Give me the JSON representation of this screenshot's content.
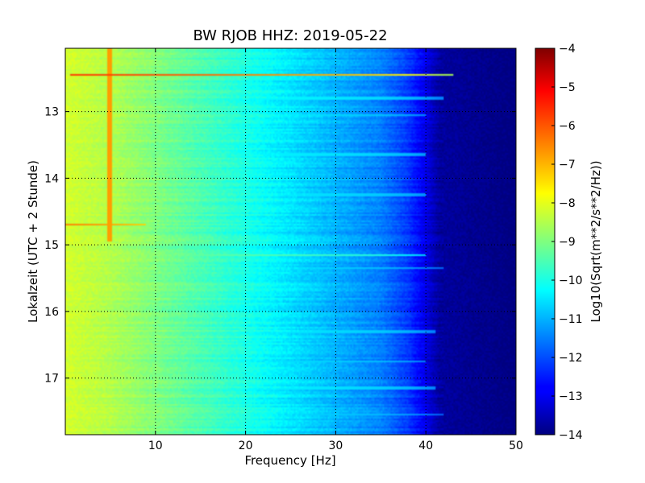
{
  "chart_data": {
    "type": "heatmap",
    "title": "BW RJOB HHZ: 2019-05-22",
    "xlabel": "Frequency [Hz]",
    "ylabel": "Lokalzeit (UTC + 2 Stunde)",
    "colorbar_label": "Log10(Sqrt(m**2/s**2/Hz))",
    "xlim": [
      0,
      50
    ],
    "ylim": [
      17.85,
      12.05
    ],
    "y_inverted": true,
    "clim": [
      -14,
      -4
    ],
    "colormap": "jet",
    "grid": true,
    "x_ticks": [
      {
        "value": 10,
        "label": "10"
      },
      {
        "value": 20,
        "label": "20"
      },
      {
        "value": 30,
        "label": "30"
      },
      {
        "value": 40,
        "label": "40"
      },
      {
        "value": 50,
        "label": "50"
      }
    ],
    "y_ticks": [
      {
        "value": 13,
        "label": "13"
      },
      {
        "value": 14,
        "label": "14"
      },
      {
        "value": 15,
        "label": "15"
      },
      {
        "value": 16,
        "label": "16"
      },
      {
        "value": 17,
        "label": "17"
      }
    ],
    "cbar_ticks": [
      {
        "value": -4,
        "label": "−4"
      },
      {
        "value": -5,
        "label": "−5"
      },
      {
        "value": -6,
        "label": "−6"
      },
      {
        "value": -7,
        "label": "−7"
      },
      {
        "value": -8,
        "label": "−8"
      },
      {
        "value": -9,
        "label": "−9"
      },
      {
        "value": -10,
        "label": "−10"
      },
      {
        "value": -11,
        "label": "−11"
      },
      {
        "value": -12,
        "label": "−12"
      },
      {
        "value": -13,
        "label": "−13"
      },
      {
        "value": -14,
        "label": "−14"
      }
    ],
    "base_spectrum": [
      {
        "freq": 0.5,
        "value": -8.2
      },
      {
        "freq": 5,
        "value": -8.5
      },
      {
        "freq": 10,
        "value": -9.0
      },
      {
        "freq": 15,
        "value": -9.5
      },
      {
        "freq": 20,
        "value": -10.0
      },
      {
        "freq": 25,
        "value": -10.5
      },
      {
        "freq": 30,
        "value": -11.0
      },
      {
        "freq": 35,
        "value": -11.5
      },
      {
        "freq": 38,
        "value": -12.2
      },
      {
        "freq": 40,
        "value": -13.0
      },
      {
        "freq": 41.5,
        "value": -13.7
      },
      {
        "freq": 50,
        "value": -14.0
      }
    ],
    "features": [
      {
        "kind": "horizontal_line",
        "time": 12.45,
        "freq_from": 0.5,
        "freq_to": 43,
        "value": -5.8
      },
      {
        "kind": "horizontal_line",
        "time": 14.7,
        "freq_from": 0,
        "freq_to": 9,
        "value": -6.5
      },
      {
        "kind": "vertical_line",
        "freq": 4.9,
        "time_from": 12.05,
        "time_to": 14.95,
        "value": -6.8
      },
      {
        "kind": "horizontal_line",
        "time": 15.15,
        "freq_from": 0,
        "freq_to": 40,
        "value": -9.3
      },
      {
        "kind": "horizontal_line",
        "time": 12.8,
        "freq_from": 5,
        "freq_to": 42,
        "value": -10.3
      },
      {
        "kind": "horizontal_line",
        "time": 13.05,
        "freq_from": 10,
        "freq_to": 40,
        "value": -10.5
      },
      {
        "kind": "horizontal_line",
        "time": 13.65,
        "freq_from": 10,
        "freq_to": 40,
        "value": -10.4
      },
      {
        "kind": "horizontal_line",
        "time": 14.25,
        "freq_from": 12,
        "freq_to": 40,
        "value": -10.5
      },
      {
        "kind": "horizontal_line",
        "time": 15.35,
        "freq_from": 0,
        "freq_to": 42,
        "value": -10.6
      },
      {
        "kind": "horizontal_line",
        "time": 16.3,
        "freq_from": 10,
        "freq_to": 41,
        "value": -10.5
      },
      {
        "kind": "horizontal_line",
        "time": 16.75,
        "freq_from": 5,
        "freq_to": 40,
        "value": -10.6
      },
      {
        "kind": "horizontal_line",
        "time": 17.15,
        "freq_from": 10,
        "freq_to": 41,
        "value": -10.4
      },
      {
        "kind": "horizontal_line",
        "time": 17.55,
        "freq_from": 5,
        "freq_to": 42,
        "value": -10.7
      },
      {
        "kind": "hook",
        "time": 12.1,
        "freq": 34.5,
        "value": -11.8
      },
      {
        "kind": "hook",
        "time": 12.95,
        "freq": 34.5,
        "value": -11.8
      },
      {
        "kind": "hook",
        "time": 13.65,
        "freq": 34.5,
        "value": -11.8
      },
      {
        "kind": "hook",
        "time": 14.4,
        "freq": 34.5,
        "value": -11.8
      },
      {
        "kind": "hook",
        "time": 15.1,
        "freq": 34.5,
        "value": -11.8
      },
      {
        "kind": "hook",
        "time": 15.95,
        "freq": 34.5,
        "value": -11.8
      },
      {
        "kind": "hook",
        "time": 16.6,
        "freq": 34.5,
        "value": -11.8
      },
      {
        "kind": "hook",
        "time": 17.35,
        "freq": 34.5,
        "value": -11.8
      }
    ]
  }
}
